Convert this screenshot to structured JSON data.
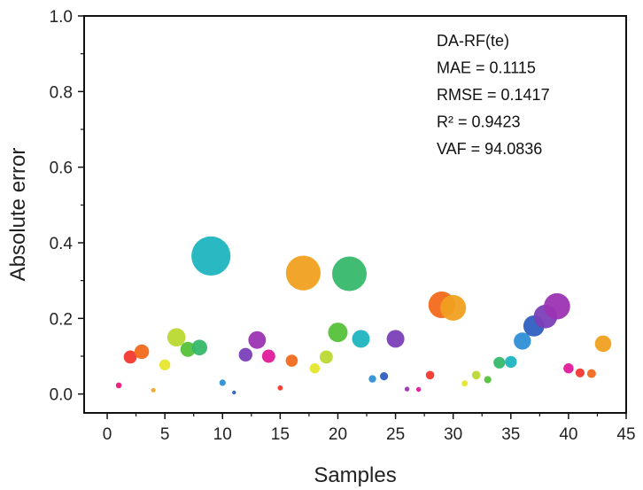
{
  "chart_data": {
    "type": "scatter",
    "xlabel": "Samples",
    "ylabel": "Absolute error",
    "xlim": [
      -2,
      45
    ],
    "ylim": [
      -0.05,
      1.0
    ],
    "xticks": [
      0,
      5,
      10,
      15,
      20,
      25,
      30,
      35,
      40,
      45
    ],
    "yticks": [
      0.0,
      0.2,
      0.4,
      0.6,
      0.8,
      1.0
    ],
    "ytick_labels": [
      "0.0",
      "0.2",
      "0.4",
      "0.6",
      "0.8",
      "1.0"
    ],
    "annotation_lines": [
      "DA-RF(te)",
      "MAE = 0.1115",
      "RMSE = 0.1417",
      "R² = 0.9423",
      "VAF = 94.0836"
    ],
    "grid": false,
    "bubble_size_encodes": "absolute error",
    "points": [
      {
        "x": 1,
        "y": 0.023,
        "color": "#e8197a"
      },
      {
        "x": 2,
        "y": 0.098,
        "color": "#f2382f"
      },
      {
        "x": 3,
        "y": 0.112,
        "color": "#f26a1b"
      },
      {
        "x": 4,
        "y": 0.01,
        "color": "#f5a623"
      },
      {
        "x": 5,
        "y": 0.077,
        "color": "#e6e62e"
      },
      {
        "x": 6,
        "y": 0.15,
        "color": "#b9d930"
      },
      {
        "x": 7,
        "y": 0.118,
        "color": "#55c23a"
      },
      {
        "x": 8,
        "y": 0.123,
        "color": "#36b86c"
      },
      {
        "x": 9,
        "y": 0.365,
        "color": "#1fb5c0"
      },
      {
        "x": 10,
        "y": 0.03,
        "color": "#2e8fd6"
      },
      {
        "x": 11,
        "y": 0.004,
        "color": "#2f5fc0"
      },
      {
        "x": 12,
        "y": 0.104,
        "color": "#7b3fb8"
      },
      {
        "x": 13,
        "y": 0.143,
        "color": "#9c34b3"
      },
      {
        "x": 14,
        "y": 0.1,
        "color": "#e01b9a"
      },
      {
        "x": 15,
        "y": 0.016,
        "color": "#f2382f"
      },
      {
        "x": 16,
        "y": 0.088,
        "color": "#f26a1b"
      },
      {
        "x": 17,
        "y": 0.32,
        "color": "#f0a020"
      },
      {
        "x": 18,
        "y": 0.068,
        "color": "#e6e62e"
      },
      {
        "x": 19,
        "y": 0.098,
        "color": "#b9d930"
      },
      {
        "x": 20,
        "y": 0.163,
        "color": "#55c23a"
      },
      {
        "x": 21,
        "y": 0.318,
        "color": "#36b86c"
      },
      {
        "x": 22,
        "y": 0.146,
        "color": "#1fb5c0"
      },
      {
        "x": 23,
        "y": 0.04,
        "color": "#2e8fd6"
      },
      {
        "x": 24,
        "y": 0.047,
        "color": "#2f5fc0"
      },
      {
        "x": 25,
        "y": 0.146,
        "color": "#7b3fb8"
      },
      {
        "x": 26,
        "y": 0.013,
        "color": "#9c34b3"
      },
      {
        "x": 27,
        "y": 0.012,
        "color": "#e01b9a"
      },
      {
        "x": 28,
        "y": 0.05,
        "color": "#f2382f"
      },
      {
        "x": 29,
        "y": 0.236,
        "color": "#f26a1b"
      },
      {
        "x": 30,
        "y": 0.228,
        "color": "#f0a020"
      },
      {
        "x": 31,
        "y": 0.028,
        "color": "#e6e62e"
      },
      {
        "x": 32,
        "y": 0.05,
        "color": "#b9d930"
      },
      {
        "x": 33,
        "y": 0.038,
        "color": "#55c23a"
      },
      {
        "x": 34,
        "y": 0.083,
        "color": "#36b86c"
      },
      {
        "x": 35,
        "y": 0.085,
        "color": "#1fb5c0"
      },
      {
        "x": 36,
        "y": 0.14,
        "color": "#2e8fd6"
      },
      {
        "x": 37,
        "y": 0.18,
        "color": "#2f5fc0"
      },
      {
        "x": 38,
        "y": 0.205,
        "color": "#7b3fb8"
      },
      {
        "x": 39,
        "y": 0.232,
        "color": "#9c34b3"
      },
      {
        "x": 40,
        "y": 0.068,
        "color": "#e01b9a"
      },
      {
        "x": 41,
        "y": 0.056,
        "color": "#f2382f"
      },
      {
        "x": 42,
        "y": 0.054,
        "color": "#f26a1b"
      },
      {
        "x": 43,
        "y": 0.133,
        "color": "#f0a020"
      }
    ]
  }
}
